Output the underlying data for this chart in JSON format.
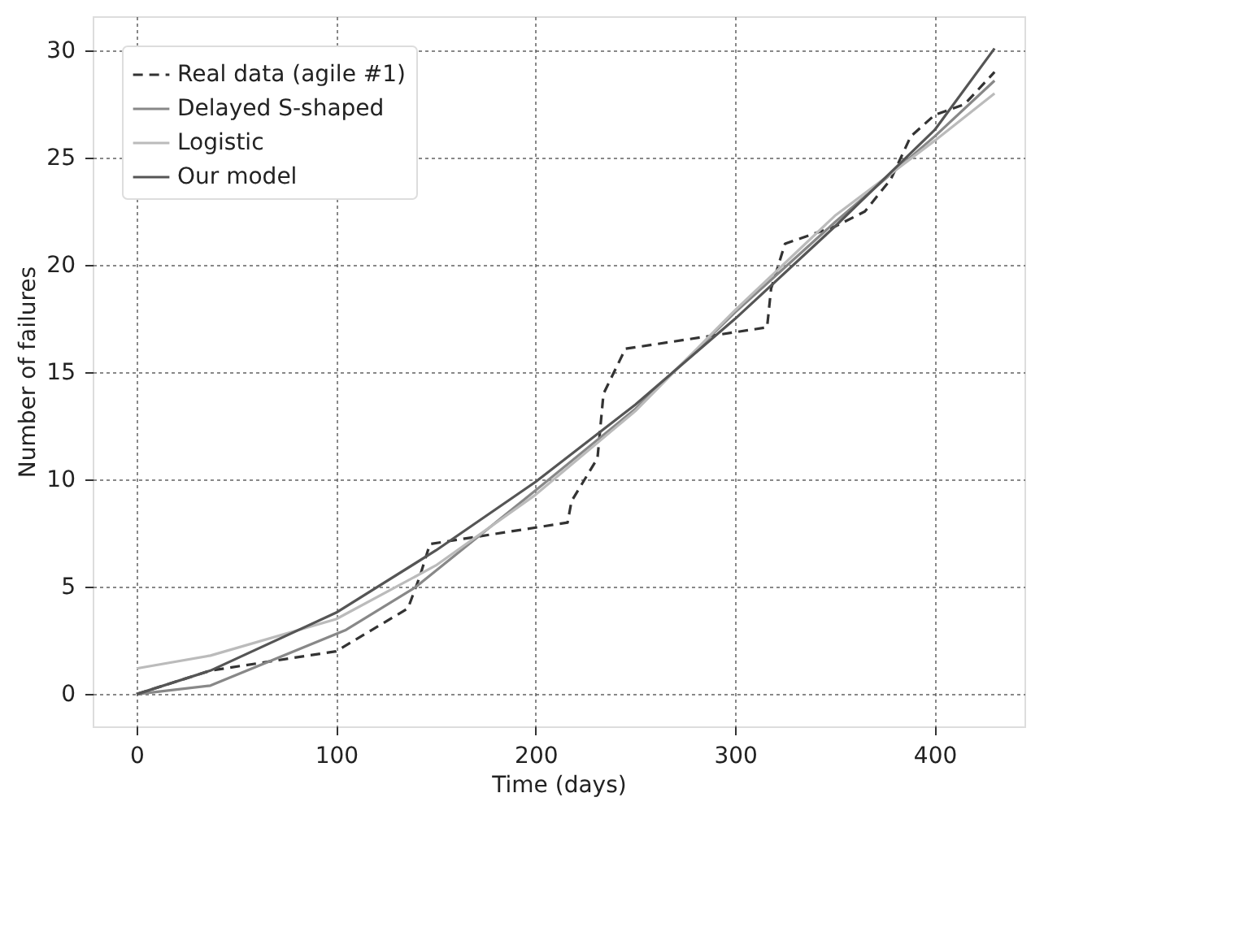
{
  "chart_data": {
    "type": "line",
    "xlabel": "Time (days)",
    "ylabel": "Number of failures",
    "xlim": [
      -22,
      445
    ],
    "ylim": [
      -1.5,
      31.6
    ],
    "xticks": [
      0,
      100,
      200,
      300,
      400
    ],
    "yticks": [
      0,
      5,
      10,
      15,
      20,
      25,
      30
    ],
    "grid": true,
    "legend": "top left",
    "marker": "none",
    "series": [
      {
        "name": "Real data (agile #1)",
        "color": "#333333",
        "line_style": "dashed",
        "x": [
          0,
          37,
          100,
          136,
          142,
          147,
          216,
          218,
          231,
          234,
          245,
          316,
          318,
          325,
          350,
          365,
          378,
          388,
          400,
          415,
          430
        ],
        "values": [
          0,
          1.1,
          2,
          4,
          5.5,
          7,
          8,
          9,
          11,
          14,
          16.1,
          17.1,
          18.9,
          21,
          21.8,
          22.5,
          24,
          26,
          27,
          27.5,
          29
        ]
      },
      {
        "name": "Delayed S-shaped",
        "color": "#888888",
        "line_style": "solid",
        "x": [
          0,
          37,
          105,
          140,
          200,
          250,
          300,
          350,
          400,
          430
        ],
        "values": [
          0,
          0.4,
          3,
          5,
          9.5,
          13.3,
          17.8,
          22,
          26,
          28.6
        ]
      },
      {
        "name": "Logistic",
        "color": "#bbbbbb",
        "line_style": "solid",
        "x": [
          0,
          37,
          100,
          150,
          200,
          250,
          300,
          350,
          400,
          430
        ],
        "values": [
          1.2,
          1.8,
          3.5,
          6,
          9.3,
          13.2,
          17.9,
          22.3,
          25.8,
          28
        ]
      },
      {
        "name": "Our model",
        "color": "#555555",
        "line_style": "solid",
        "x": [
          0,
          37,
          100,
          150,
          200,
          250,
          300,
          350,
          400,
          430
        ],
        "values": [
          0,
          1.1,
          3.8,
          6.7,
          9.9,
          13.5,
          17.5,
          21.8,
          26.3,
          30.1
        ]
      }
    ]
  }
}
